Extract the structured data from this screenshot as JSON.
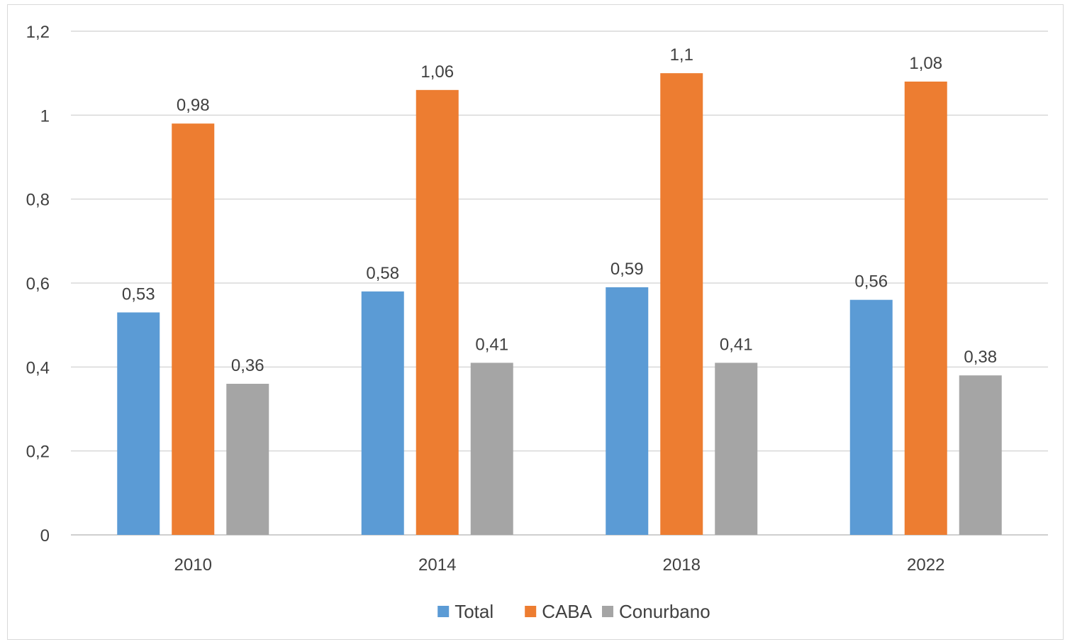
{
  "chart_data": {
    "type": "bar",
    "categories": [
      "2010",
      "2014",
      "2018",
      "2022"
    ],
    "series": [
      {
        "name": "Total",
        "color": "#5b9bd5",
        "values": [
          0.53,
          0.58,
          0.59,
          0.56
        ],
        "labels": [
          "0,53",
          "0,58",
          "0,59",
          "0,56"
        ]
      },
      {
        "name": "CABA",
        "color": "#ed7d31",
        "values": [
          0.98,
          1.06,
          1.1,
          1.08
        ],
        "labels": [
          "0,98",
          "1,06",
          "1,1",
          "1,08"
        ]
      },
      {
        "name": "Conurbano",
        "color": "#a5a5a5",
        "values": [
          0.36,
          0.41,
          0.41,
          0.38
        ],
        "labels": [
          "0,36",
          "0,41",
          "0,41",
          "0,38"
        ]
      }
    ],
    "ylim": [
      0,
      1.2
    ],
    "yticks": [
      0,
      0.2,
      0.4,
      0.6,
      0.8,
      1,
      1.2
    ],
    "ytick_labels": [
      "0",
      "0,2",
      "0,4",
      "0,6",
      "0,8",
      "1",
      "1,2"
    ],
    "grid": true,
    "legend": "bottom"
  }
}
